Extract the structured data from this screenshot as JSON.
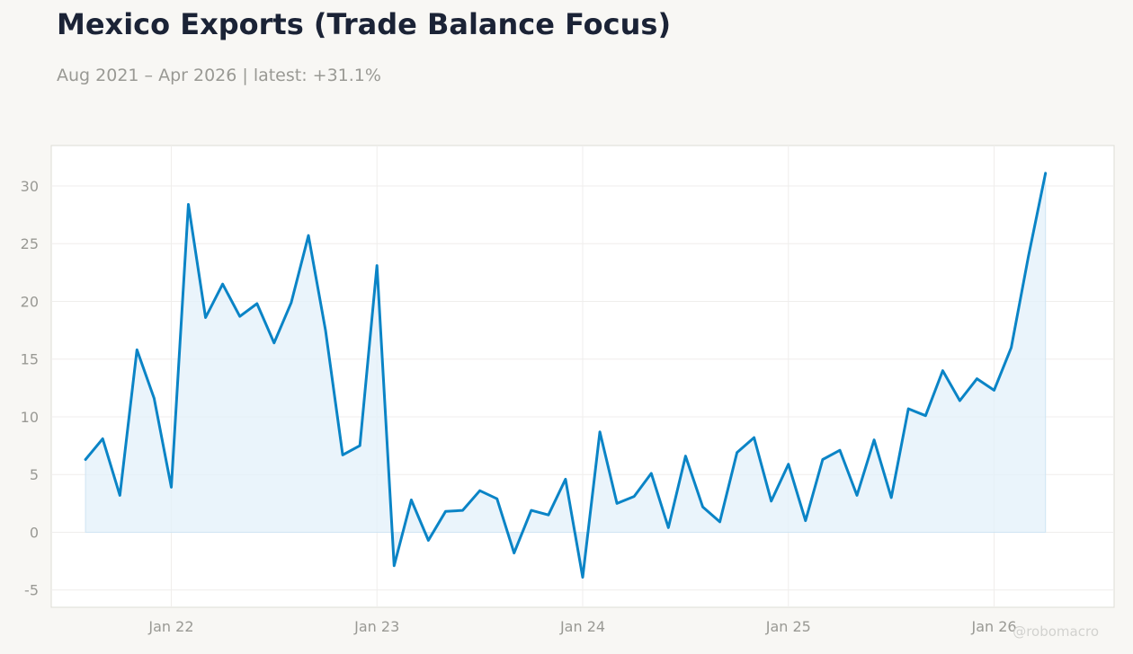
{
  "header": {
    "title": "Mexico Exports (Trade Balance Focus)",
    "subtitle": "Aug 2021 – Apr 2026 | latest: +31.1%"
  },
  "watermark": "@robomacro",
  "colors": {
    "line": "#0a84c6",
    "fill": "#e3f0fa",
    "plot_bg": "#ffffff",
    "page_bg": "#f8f7f4",
    "tick_text": "#999994"
  },
  "chart_data": {
    "type": "area",
    "title": "Mexico Exports (Trade Balance Focus)",
    "subtitle": "Aug 2021 – Apr 2026 | latest: +31.1%",
    "xlabel": "",
    "ylabel": "",
    "ylim": [
      -6.5,
      33.5
    ],
    "yticks": [
      -5,
      0,
      5,
      10,
      15,
      20,
      25,
      30
    ],
    "xticks": [
      {
        "label": "Jan 22",
        "date": "2022-01"
      },
      {
        "label": "Jan 23",
        "date": "2023-01"
      },
      {
        "label": "Jan 24",
        "date": "2024-01"
      },
      {
        "label": "Jan 25",
        "date": "2025-01"
      },
      {
        "label": "Jan 26",
        "date": "2026-01"
      }
    ],
    "xlim": [
      "2021-06",
      "2026-08"
    ],
    "grid": true,
    "legend": "none",
    "series": [
      {
        "x": [
          "2021-08",
          "2021-09",
          "2021-10",
          "2021-11",
          "2021-12",
          "2022-01",
          "2022-02",
          "2022-03",
          "2022-04",
          "2022-05",
          "2022-06",
          "2022-07",
          "2022-08",
          "2022-09",
          "2022-10",
          "2022-11",
          "2022-12",
          "2023-01",
          "2023-02",
          "2023-03",
          "2023-04",
          "2023-05",
          "2023-06",
          "2023-07",
          "2023-08",
          "2023-09",
          "2023-10",
          "2023-11",
          "2023-12",
          "2024-01",
          "2024-02",
          "2024-03",
          "2024-04",
          "2024-05",
          "2024-06",
          "2024-07",
          "2024-08",
          "2024-09",
          "2024-10",
          "2024-11",
          "2024-12",
          "2025-01",
          "2025-02",
          "2025-03",
          "2025-04",
          "2025-05",
          "2025-06",
          "2025-07",
          "2025-08",
          "2025-09",
          "2025-10",
          "2025-11",
          "2025-12",
          "2026-01",
          "2026-02",
          "2026-03",
          "2026-04"
        ],
        "values": [
          6.3,
          8.1,
          3.2,
          15.8,
          11.6,
          3.9,
          28.4,
          18.6,
          21.5,
          18.7,
          19.8,
          16.4,
          19.9,
          25.7,
          17.5,
          6.7,
          7.5,
          23.1,
          -2.9,
          2.8,
          -0.7,
          1.8,
          1.9,
          3.6,
          2.9,
          -1.8,
          1.9,
          1.5,
          4.6,
          -3.9,
          8.7,
          2.5,
          3.1,
          5.1,
          0.4,
          6.6,
          2.2,
          0.9,
          6.9,
          8.2,
          2.7,
          5.9,
          1.0,
          6.3,
          7.1,
          3.2,
          8.0,
          3.0,
          10.7,
          10.1,
          14.0,
          11.4,
          13.3,
          12.3,
          16.0,
          23.9,
          31.1
        ]
      }
    ]
  }
}
